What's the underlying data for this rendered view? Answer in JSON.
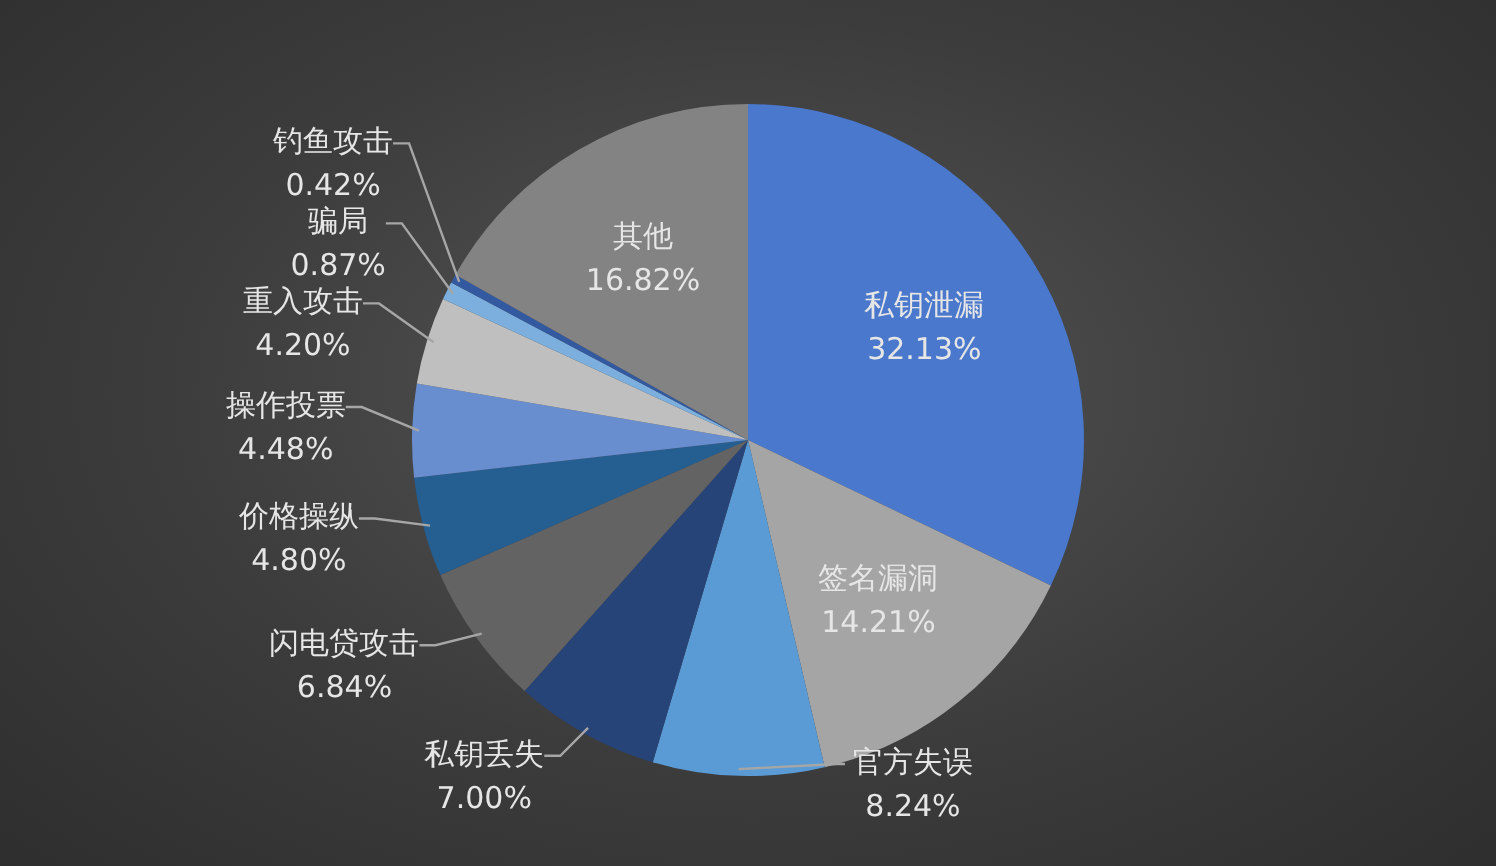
{
  "chart_data": {
    "type": "pie",
    "categories": [
      "私钥泄漏",
      "签名漏洞",
      "官方失误",
      "私钥丢失",
      "闪电贷攻击",
      "价格操纵",
      "操作投票",
      "重入攻击",
      "骗局",
      "钓鱼攻击",
      "其他"
    ],
    "values": [
      32.13,
      14.21,
      8.24,
      7.0,
      6.84,
      4.8,
      4.48,
      4.2,
      0.87,
      0.42,
      16.82
    ],
    "value_labels": [
      "32.13%",
      "14.21%",
      "8.24%",
      "7.00%",
      "6.84%",
      "4.80%",
      "4.48%",
      "4.20%",
      "0.87%",
      "0.42%",
      "16.82%"
    ],
    "colors": [
      "#4a78cc",
      "#a5a5a5",
      "#5b9bd5",
      "#264478",
      "#636363",
      "#255e91",
      "#698ed0",
      "#bfbfbf",
      "#7cafdd",
      "#335aa1",
      "#838383"
    ],
    "legend": false
  }
}
